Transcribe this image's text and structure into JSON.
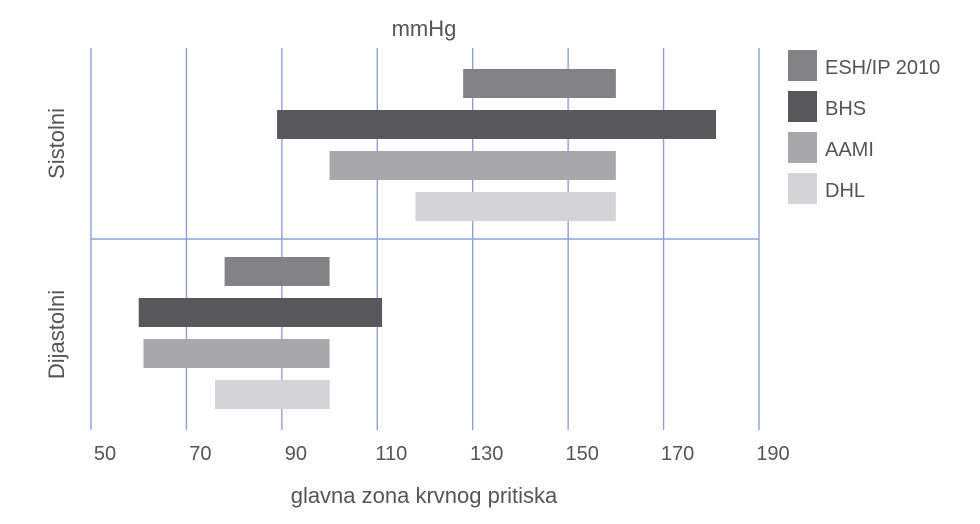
{
  "chart_data": {
    "type": "bar",
    "orientation": "horizontal-range",
    "title": "mmHg",
    "xlabel": "glavna zona krvnog pritiska",
    "x_ticks": [
      50,
      70,
      90,
      110,
      130,
      150,
      170,
      190
    ],
    "xlim": [
      50,
      190
    ],
    "groups": [
      "Sistolni",
      "Dijastolni"
    ],
    "series": [
      {
        "name": "ESH/IP 2010",
        "color": "#838385",
        "ranges": [
          [
            128,
            160
          ],
          [
            78,
            100
          ]
        ]
      },
      {
        "name": "BHS",
        "color": "#58585a",
        "ranges": [
          [
            89,
            181
          ],
          [
            60,
            111
          ]
        ]
      },
      {
        "name": "AAMI",
        "color": "#a8a8aa",
        "ranges": [
          [
            100,
            160
          ],
          [
            61,
            100
          ]
        ]
      },
      {
        "name": "DHL",
        "color": "#d4d4d6",
        "ranges": [
          [
            118,
            160
          ],
          [
            76,
            100
          ]
        ]
      }
    ],
    "grid": true,
    "grid_color": "#8fa0d8",
    "legend_position": "right"
  }
}
